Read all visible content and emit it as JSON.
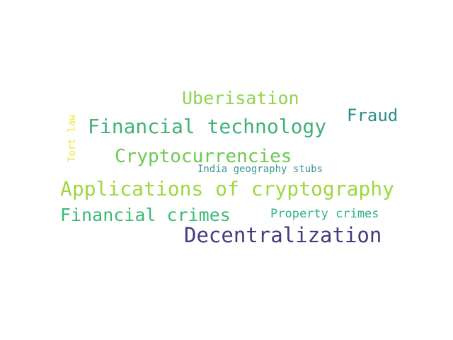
{
  "words": [
    {
      "key": "uberisation",
      "text": "Uberisation",
      "color": "#8dd44a"
    },
    {
      "key": "fraud",
      "text": "Fraud",
      "color": "#2a8c8a"
    },
    {
      "key": "fintech",
      "text": "Financial technology",
      "color": "#3fb27a"
    },
    {
      "key": "tortlaw",
      "text": "Tort law",
      "color": "#f3e23a"
    },
    {
      "key": "crypto",
      "text": "Cryptocurrencies",
      "color": "#6ec854"
    },
    {
      "key": "india",
      "text": "India geography stubs",
      "color": "#3a968c"
    },
    {
      "key": "appcrypto",
      "text": "Applications of cryptography",
      "color": "#9ed83f"
    },
    {
      "key": "fincrimes",
      "text": "Financial crimes",
      "color": "#3dba78"
    },
    {
      "key": "propcrimes",
      "text": "Property crimes",
      "color": "#2fb28a"
    },
    {
      "key": "decentral",
      "text": "Decentralization",
      "color": "#463a7e"
    }
  ]
}
